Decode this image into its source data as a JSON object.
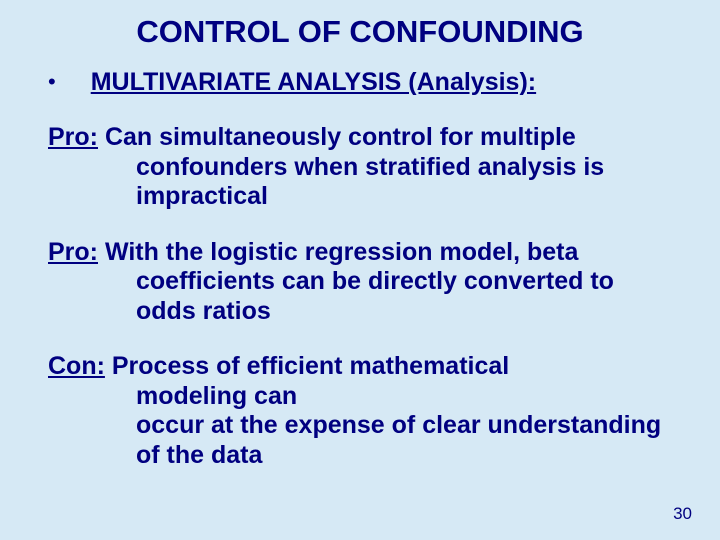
{
  "colors": {
    "background": "#d6e9f5",
    "text": "#000080"
  },
  "typography": {
    "title_fontsize": 31,
    "body_fontsize": 25,
    "pagenum_fontsize": 17,
    "font_family": "Arial",
    "font_weight": "bold"
  },
  "title": "CONTROL OF CONFOUNDING",
  "bullet": {
    "marker": "•",
    "text": "MULTIVARIATE ANALYSIS (Analysis):"
  },
  "paragraphs": [
    {
      "label": "Pro:",
      "line1_rest": "  Can simultaneously control for multiple",
      "cont": "confounders when stratified analysis is impractical"
    },
    {
      "label": "Pro:",
      "line1_rest": "  With the logistic regression model, beta",
      "cont": "coefficients can be directly converted to odds ratios"
    },
    {
      "label": "Con:",
      "line1_rest": " Process of efficient mathematical",
      "cont_a": "modeling can",
      "cont_b": "occur at the expense of clear understanding of the data"
    }
  ],
  "page_number": "30"
}
